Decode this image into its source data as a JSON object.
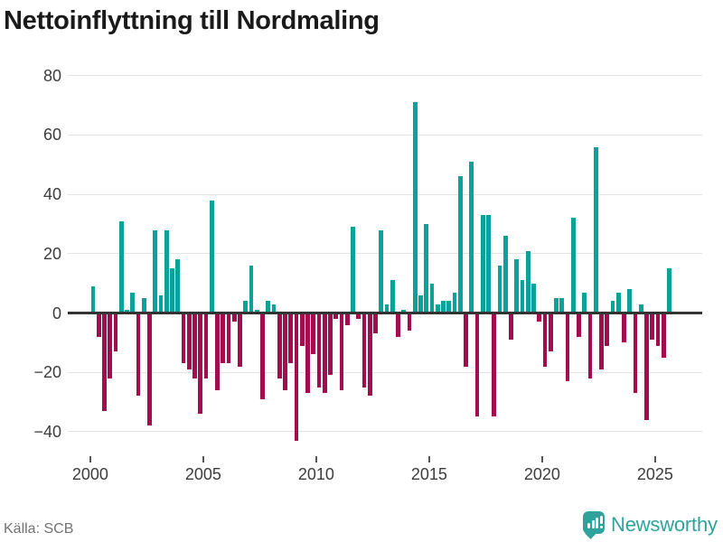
{
  "title": "Nettoinflyttning till Nordmaling",
  "footer": {
    "source": "Källa: SCB",
    "brand": "Newsworthy"
  },
  "colors": {
    "background": "#ffffff",
    "positive": "#0ba29a",
    "negative": "#a30d4f",
    "brand": "#2fa39b",
    "title_text": "#1a1a1a",
    "axis_text": "#3d3d3d",
    "grid": "#e3e3e3",
    "zero_line": "#333333",
    "source_text": "#737373"
  },
  "chart_data": {
    "type": "bar",
    "title": "Nettoinflyttning till Nordmaling",
    "frequency": "quarterly",
    "grid": "horizontal",
    "legend": "none",
    "x_axis": {
      "tick_years": [
        2000,
        2005,
        2010,
        2015,
        2020,
        2025
      ],
      "start": "2000 Q1",
      "end": "2025 Q3"
    },
    "y_axis": {
      "ticks": [
        80,
        60,
        40,
        20,
        0,
        -20,
        -40
      ],
      "range": [
        -45,
        84
      ]
    },
    "series": [
      {
        "year": 2000,
        "values": [
          9,
          -8,
          -33,
          -22
        ]
      },
      {
        "year": 2001,
        "values": [
          -13,
          31,
          1,
          7
        ]
      },
      {
        "year": 2002,
        "values": [
          -28,
          5,
          -38,
          28
        ]
      },
      {
        "year": 2003,
        "values": [
          6,
          28,
          15,
          18
        ]
      },
      {
        "year": 2004,
        "values": [
          -17,
          -19,
          -22,
          -34
        ]
      },
      {
        "year": 2005,
        "values": [
          -22,
          38,
          -26,
          -17
        ]
      },
      {
        "year": 2006,
        "values": [
          -17,
          -3,
          -18,
          4
        ]
      },
      {
        "year": 2007,
        "values": [
          16,
          1,
          -29,
          4
        ]
      },
      {
        "year": 2008,
        "values": [
          3,
          -22,
          -26,
          -17
        ]
      },
      {
        "year": 2009,
        "values": [
          -43,
          -11,
          -27,
          -14
        ]
      },
      {
        "year": 2010,
        "values": [
          -25,
          -27,
          -21,
          -2
        ]
      },
      {
        "year": 2011,
        "values": [
          -26,
          -4,
          29,
          -2
        ]
      },
      {
        "year": 2012,
        "values": [
          -25,
          -28,
          -7,
          28
        ]
      },
      {
        "year": 2013,
        "values": [
          3,
          11,
          -8,
          1
        ]
      },
      {
        "year": 2014,
        "values": [
          -6,
          71,
          6,
          30
        ]
      },
      {
        "year": 2015,
        "values": [
          10,
          3,
          4,
          4
        ]
      },
      {
        "year": 2016,
        "values": [
          7,
          46,
          -18,
          51
        ]
      },
      {
        "year": 2017,
        "values": [
          -35,
          33,
          33,
          -35
        ]
      },
      {
        "year": 2018,
        "values": [
          16,
          26,
          -9,
          18
        ]
      },
      {
        "year": 2019,
        "values": [
          11,
          21,
          10,
          -3
        ]
      },
      {
        "year": 2020,
        "values": [
          -18,
          -13,
          5,
          5
        ]
      },
      {
        "year": 2021,
        "values": [
          -23,
          32,
          -8,
          7
        ]
      },
      {
        "year": 2022,
        "values": [
          -22,
          56,
          -19,
          -11
        ]
      },
      {
        "year": 2023,
        "values": [
          4,
          7,
          -10,
          8
        ]
      },
      {
        "year": 2024,
        "values": [
          -27,
          3,
          -36,
          -9
        ]
      },
      {
        "year": 2025,
        "values": [
          -11,
          -15,
          15
        ]
      }
    ]
  }
}
